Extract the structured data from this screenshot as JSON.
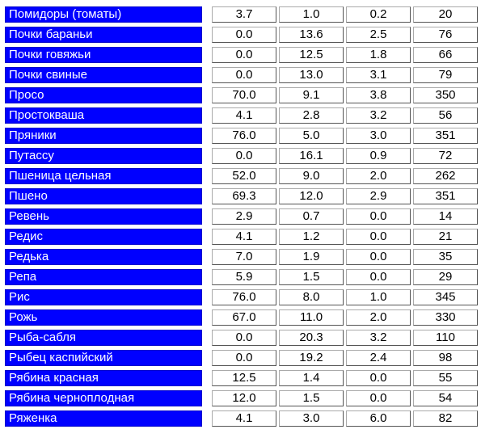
{
  "rows": [
    {
      "name": "Помидоры (томаты)",
      "v1": "3.7",
      "v2": "1.0",
      "v3": "0.2",
      "v4": "20"
    },
    {
      "name": "Почки бараньи",
      "v1": "0.0",
      "v2": "13.6",
      "v3": "2.5",
      "v4": "76"
    },
    {
      "name": "Почки говяжьи",
      "v1": "0.0",
      "v2": "12.5",
      "v3": "1.8",
      "v4": "66"
    },
    {
      "name": "Почки свиные",
      "v1": "0.0",
      "v2": "13.0",
      "v3": "3.1",
      "v4": "79"
    },
    {
      "name": "Просо",
      "v1": "70.0",
      "v2": "9.1",
      "v3": "3.8",
      "v4": "350"
    },
    {
      "name": "Простокваша",
      "v1": "4.1",
      "v2": "2.8",
      "v3": "3.2",
      "v4": "56"
    },
    {
      "name": "Пряники",
      "v1": "76.0",
      "v2": "5.0",
      "v3": "3.0",
      "v4": "351"
    },
    {
      "name": "Путассу",
      "v1": "0.0",
      "v2": "16.1",
      "v3": "0.9",
      "v4": "72"
    },
    {
      "name": "Пшеница цельная",
      "v1": "52.0",
      "v2": "9.0",
      "v3": "2.0",
      "v4": "262"
    },
    {
      "name": "Пшено",
      "v1": "69.3",
      "v2": "12.0",
      "v3": "2.9",
      "v4": "351"
    },
    {
      "name": "Ревень",
      "v1": "2.9",
      "v2": "0.7",
      "v3": "0.0",
      "v4": "14"
    },
    {
      "name": "Редис",
      "v1": "4.1",
      "v2": "1.2",
      "v3": "0.0",
      "v4": "21"
    },
    {
      "name": "Редька",
      "v1": "7.0",
      "v2": "1.9",
      "v3": "0.0",
      "v4": "35"
    },
    {
      "name": "Репа",
      "v1": "5.9",
      "v2": "1.5",
      "v3": "0.0",
      "v4": "29"
    },
    {
      "name": "Рис",
      "v1": "76.0",
      "v2": "8.0",
      "v3": "1.0",
      "v4": "345"
    },
    {
      "name": "Рожь",
      "v1": "67.0",
      "v2": "11.0",
      "v3": "2.0",
      "v4": "330"
    },
    {
      "name": "Рыба-сабля",
      "v1": "0.0",
      "v2": "20.3",
      "v3": "3.2",
      "v4": "110"
    },
    {
      "name": "Рыбец каспийский",
      "v1": "0.0",
      "v2": "19.2",
      "v3": "2.4",
      "v4": "98"
    },
    {
      "name": "Рябина красная",
      "v1": "12.5",
      "v2": "1.4",
      "v3": "0.0",
      "v4": "55"
    },
    {
      "name": "Рябина черноплодная",
      "v1": "12.0",
      "v2": "1.5",
      "v3": "0.0",
      "v4": "54"
    },
    {
      "name": "Ряженка",
      "v1": "4.1",
      "v2": "3.0",
      "v3": "6.0",
      "v4": "82"
    }
  ]
}
